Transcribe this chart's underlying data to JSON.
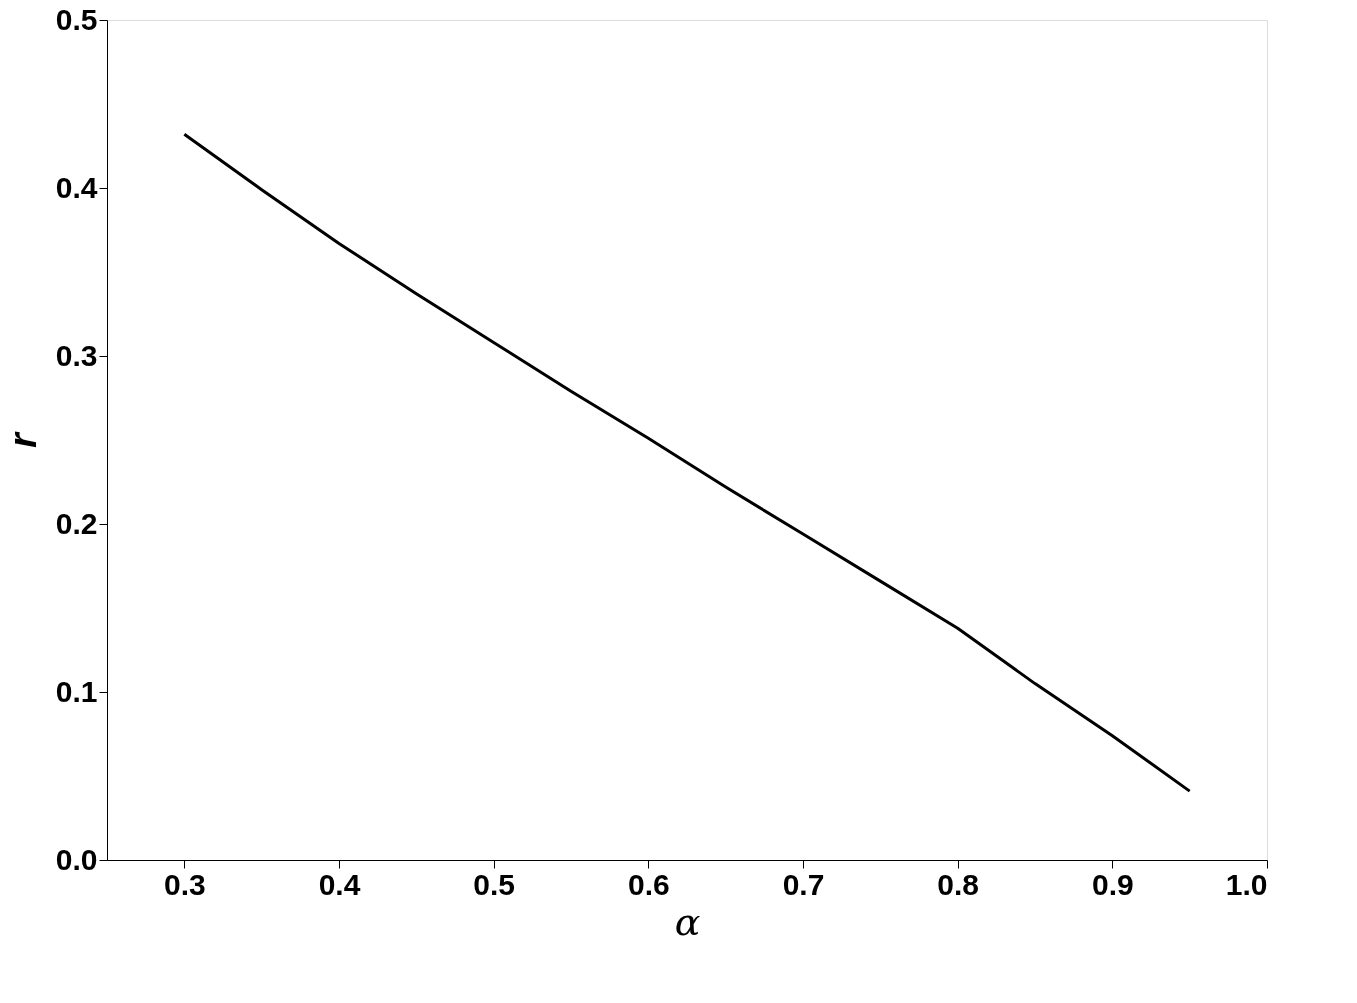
{
  "chart_data": {
    "type": "line",
    "xlabel": "α",
    "ylabel": "r",
    "x": [
      0.3,
      0.35,
      0.4,
      0.45,
      0.5,
      0.55,
      0.6,
      0.65,
      0.7,
      0.75,
      0.8,
      0.85,
      0.9,
      0.95
    ],
    "series": [
      {
        "color": "#000000",
        "values": [
          0.432,
          0.399,
          0.367,
          0.337,
          0.308,
          0.279,
          0.251,
          0.222,
          0.194,
          0.166,
          0.138,
          0.105,
          0.074,
          0.041
        ]
      }
    ],
    "xlim": [
      0.25,
      1.0
    ],
    "xticks": [
      0.3,
      0.4,
      0.5,
      0.6,
      0.7,
      0.8,
      0.9,
      {
        "value": 1.0,
        "label": "1.0"
      }
    ],
    "ylim": [
      0.0,
      0.5
    ],
    "yticks": [
      {
        "value": 0.0,
        "label": "0.0"
      },
      0.1,
      0.2,
      0.3,
      0.4,
      0.5
    ],
    "grid": false,
    "legend": false,
    "marker": "none",
    "line_style": "solid"
  }
}
